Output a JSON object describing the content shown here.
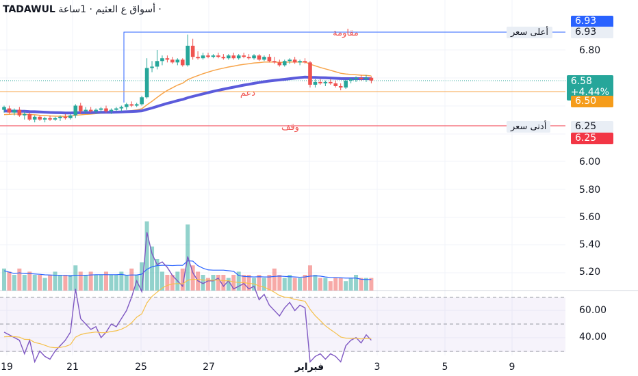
{
  "header": {
    "symbol": "TADAWUL",
    "subtitle": "أسواق ع العثيم · 1ساعة ·"
  },
  "colors": {
    "up": "#26a69a",
    "down": "#ef5350",
    "ma_orange": "#f7a44a",
    "ma_blue": "#5b5bdb",
    "resistance": "#2962ff",
    "stop": "#f23645",
    "rsi": "#7e57c2",
    "rsi_ma": "#f5c04a",
    "vol_ma": "#2962ff"
  },
  "labels": {
    "resistance": "مقاومة",
    "support": "دعم",
    "stop": "وقف",
    "high_label": "أعلى سعر",
    "low_label": "أدنى سعر"
  },
  "price_tags": {
    "top": "6.93",
    "high": "6.93",
    "current": "6.58",
    "change": "+4.44%",
    "support": "6.50",
    "low": "6.25",
    "low_red": "6.25"
  },
  "chart_data": {
    "type": "candlestick",
    "price_axis": {
      "ticks": [
        "6.80",
        "6.00",
        "5.80",
        "5.60",
        "5.40",
        "5.20"
      ],
      "range": [
        5.1,
        6.99
      ]
    },
    "rsi_axis": {
      "ticks": [
        "60.00",
        "40.00"
      ]
    },
    "x_ticks": [
      "19",
      "21",
      "25",
      "27",
      "فبراير",
      "3",
      "5",
      "9"
    ],
    "levels": {
      "resistance": 6.93,
      "support": 6.5,
      "stop": 6.25
    },
    "candles": [
      [
        6.37,
        6.4,
        6.35,
        6.39
      ],
      [
        6.38,
        6.4,
        6.34,
        6.35
      ],
      [
        6.35,
        6.38,
        6.33,
        6.37
      ],
      [
        6.37,
        6.39,
        6.32,
        6.33
      ],
      [
        6.33,
        6.36,
        6.3,
        6.34
      ],
      [
        6.34,
        6.35,
        6.29,
        6.3
      ],
      [
        6.3,
        6.33,
        6.28,
        6.32
      ],
      [
        6.32,
        6.33,
        6.29,
        6.3
      ],
      [
        6.3,
        6.32,
        6.28,
        6.31
      ],
      [
        6.31,
        6.33,
        6.29,
        6.3
      ],
      [
        6.3,
        6.32,
        6.29,
        6.31
      ],
      [
        6.31,
        6.33,
        6.29,
        6.32
      ],
      [
        6.32,
        6.34,
        6.3,
        6.31
      ],
      [
        6.31,
        6.34,
        6.3,
        6.33
      ],
      [
        6.33,
        6.41,
        6.31,
        6.4
      ],
      [
        6.4,
        6.42,
        6.34,
        6.36
      ],
      [
        6.36,
        6.39,
        6.34,
        6.37
      ],
      [
        6.37,
        6.39,
        6.35,
        6.36
      ],
      [
        6.36,
        6.38,
        6.34,
        6.37
      ],
      [
        6.37,
        6.39,
        6.35,
        6.38
      ],
      [
        6.38,
        6.4,
        6.35,
        6.36
      ],
      [
        6.36,
        6.38,
        6.34,
        6.37
      ],
      [
        6.37,
        6.39,
        6.36,
        6.38
      ],
      [
        6.38,
        6.4,
        6.36,
        6.39
      ],
      [
        6.39,
        6.42,
        6.37,
        6.41
      ],
      [
        6.41,
        6.43,
        6.39,
        6.4
      ],
      [
        6.4,
        6.42,
        6.39,
        6.41
      ],
      [
        6.41,
        6.47,
        6.4,
        6.46
      ],
      [
        6.46,
        6.74,
        6.45,
        6.67
      ],
      [
        6.67,
        6.72,
        6.64,
        6.68
      ],
      [
        6.68,
        6.8,
        6.66,
        6.72
      ],
      [
        6.72,
        6.76,
        6.69,
        6.74
      ],
      [
        6.74,
        6.76,
        6.71,
        6.73
      ],
      [
        6.73,
        6.75,
        6.7,
        6.71
      ],
      [
        6.71,
        6.74,
        6.69,
        6.73
      ],
      [
        6.73,
        6.74,
        6.68,
        6.69
      ],
      [
        6.69,
        6.91,
        6.68,
        6.83
      ],
      [
        6.83,
        6.88,
        6.73,
        6.75
      ],
      [
        6.75,
        6.79,
        6.73,
        6.74
      ],
      [
        6.74,
        6.78,
        6.73,
        6.76
      ],
      [
        6.76,
        6.78,
        6.74,
        6.75
      ],
      [
        6.75,
        6.77,
        6.74,
        6.76
      ],
      [
        6.76,
        6.78,
        6.74,
        6.75
      ],
      [
        6.75,
        6.77,
        6.73,
        6.74
      ],
      [
        6.74,
        6.77,
        6.73,
        6.76
      ],
      [
        6.76,
        6.78,
        6.73,
        6.74
      ],
      [
        6.74,
        6.77,
        6.73,
        6.76
      ],
      [
        6.76,
        6.78,
        6.74,
        6.75
      ],
      [
        6.75,
        6.77,
        6.73,
        6.74
      ],
      [
        6.74,
        6.77,
        6.73,
        6.76
      ],
      [
        6.76,
        6.77,
        6.72,
        6.73
      ],
      [
        6.73,
        6.76,
        6.72,
        6.75
      ],
      [
        6.75,
        6.77,
        6.71,
        6.72
      ],
      [
        6.72,
        6.75,
        6.7,
        6.71
      ],
      [
        6.71,
        6.73,
        6.68,
        6.69
      ],
      [
        6.69,
        6.73,
        6.68,
        6.72
      ],
      [
        6.72,
        6.74,
        6.7,
        6.73
      ],
      [
        6.73,
        6.75,
        6.7,
        6.71
      ],
      [
        6.71,
        6.73,
        6.69,
        6.72
      ],
      [
        6.72,
        6.74,
        6.7,
        6.71
      ],
      [
        6.71,
        6.72,
        6.53,
        6.55
      ],
      [
        6.55,
        6.59,
        6.53,
        6.57
      ],
      [
        6.57,
        6.59,
        6.55,
        6.56
      ],
      [
        6.56,
        6.58,
        6.54,
        6.57
      ],
      [
        6.57,
        6.59,
        6.55,
        6.56
      ],
      [
        6.56,
        6.58,
        6.53,
        6.54
      ],
      [
        6.54,
        6.56,
        6.51,
        6.53
      ],
      [
        6.53,
        6.59,
        6.52,
        6.58
      ],
      [
        6.58,
        6.6,
        6.56,
        6.59
      ],
      [
        6.59,
        6.61,
        6.57,
        6.6
      ],
      [
        6.6,
        6.62,
        6.58,
        6.59
      ],
      [
        6.59,
        6.62,
        6.57,
        6.6
      ],
      [
        6.6,
        6.61,
        6.56,
        6.58
      ]
    ],
    "volume": [
      7,
      6,
      5,
      7,
      5,
      6,
      5,
      5,
      4,
      5,
      6,
      5,
      5,
      5,
      8,
      6,
      5,
      6,
      5,
      5,
      6,
      5,
      5,
      6,
      5,
      7,
      5,
      9,
      22,
      14,
      10,
      6,
      5,
      5,
      6,
      7,
      21,
      8,
      6,
      5,
      4,
      5,
      5,
      5,
      4,
      5,
      6,
      5,
      5,
      4,
      5,
      4,
      5,
      7,
      5,
      4,
      5,
      4,
      4,
      5,
      8,
      5,
      4,
      4,
      3,
      4,
      4,
      3,
      4,
      5,
      4,
      4,
      4
    ],
    "rsi": [
      47,
      46,
      45,
      44,
      39,
      44,
      36,
      40,
      38,
      37,
      40,
      42,
      44,
      47,
      63,
      52,
      50,
      48,
      49,
      45,
      47,
      50,
      49,
      52,
      55,
      60,
      66,
      62,
      84,
      76,
      72,
      73,
      71,
      68,
      66,
      64,
      75,
      69,
      66,
      65,
      66,
      66,
      67,
      64,
      66,
      63,
      64,
      65,
      63,
      64,
      59,
      61,
      57,
      55,
      53,
      56,
      58,
      55,
      57,
      56,
      36,
      38,
      39,
      37,
      39,
      38,
      36,
      42,
      44,
      45,
      43,
      46,
      44
    ]
  }
}
